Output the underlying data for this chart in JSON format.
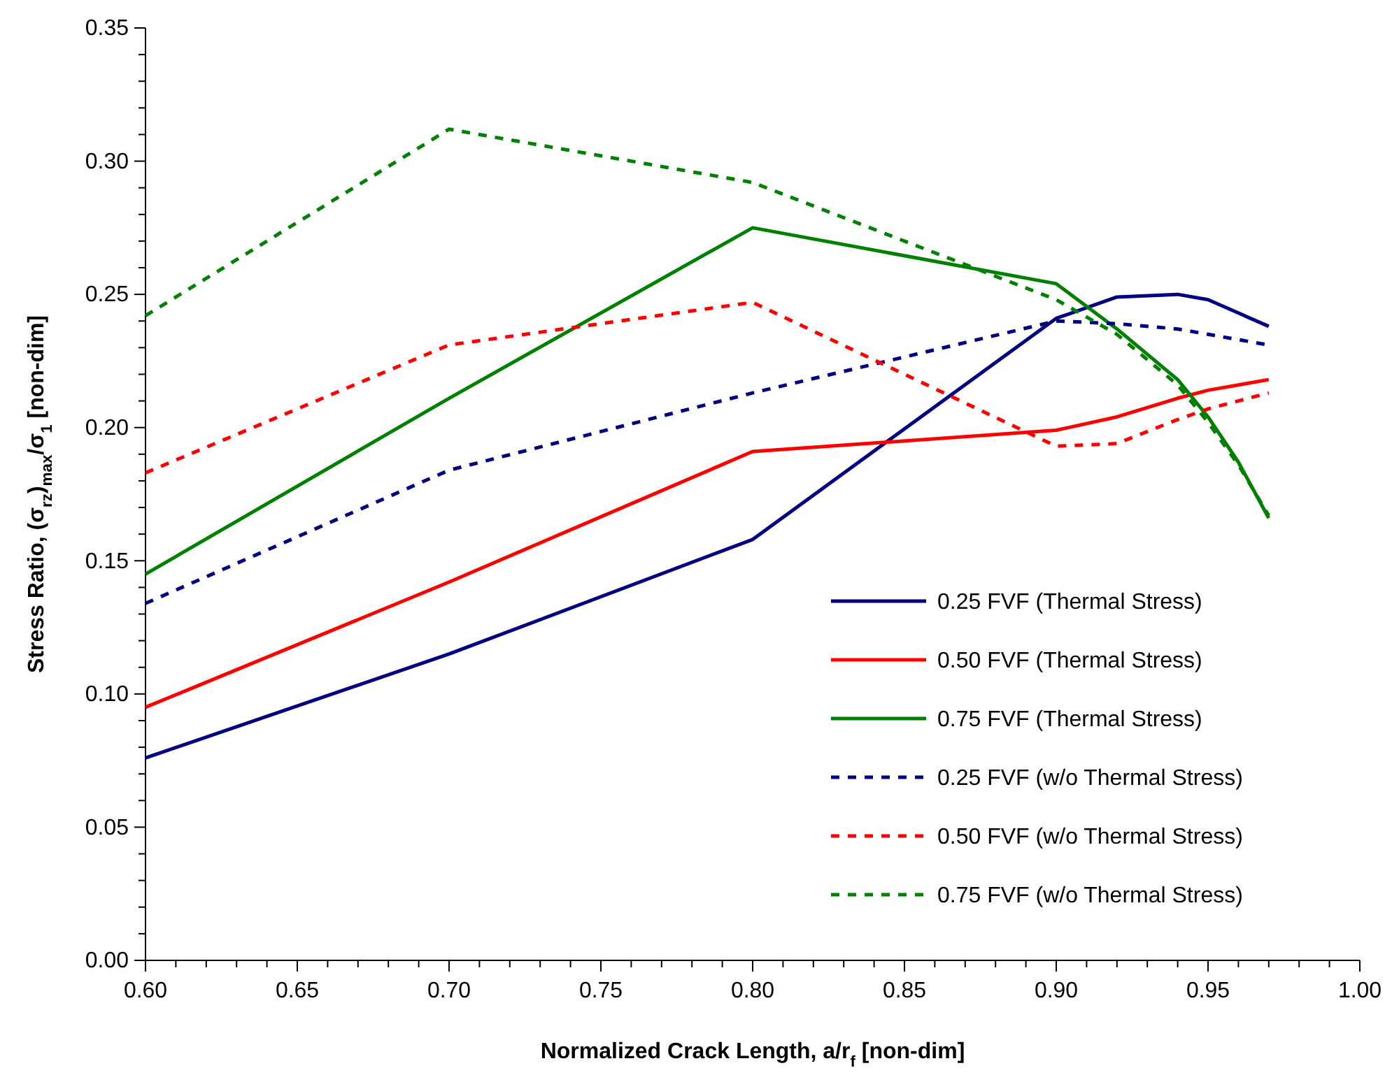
{
  "chart_data": {
    "type": "line",
    "xlabel": "Normalized Crack Length, a/r$_{f}$ [non-dim]",
    "ylabel": "Stress Ratio, (σ$_{rz}$)$_{max}$/σ$_{1}$  [non-dim]",
    "x": [
      0.6,
      0.7,
      0.8,
      0.9,
      0.92,
      0.94,
      0.95,
      0.96,
      0.97
    ],
    "series": [
      {
        "name": "0.25 FVF (Thermal Stress)",
        "color": "#000080",
        "line_style": "solid",
        "values": [
          0.076,
          0.115,
          0.158,
          0.241,
          0.249,
          0.25,
          0.248,
          0.243,
          0.238
        ]
      },
      {
        "name": "0.50 FVF (Thermal Stress)",
        "color": "#ff0000",
        "line_style": "solid",
        "values": [
          0.095,
          0.142,
          0.191,
          0.199,
          0.204,
          0.211,
          0.214,
          0.216,
          0.218
        ]
      },
      {
        "name": "0.75 FVF (Thermal Stress)",
        "color": "#008000",
        "line_style": "solid",
        "values": [
          0.145,
          0.211,
          0.275,
          0.254,
          0.237,
          0.218,
          0.204,
          0.187,
          0.166
        ]
      },
      {
        "name": "0.25 FVF (w/o Thermal Stress)",
        "color": "#000080",
        "line_style": "dashed",
        "values": [
          0.134,
          0.184,
          0.213,
          0.24,
          0.239,
          0.237,
          0.235,
          0.233,
          0.231
        ]
      },
      {
        "name": "0.50 FVF (w/o Thermal Stress)",
        "color": "#ff0000",
        "line_style": "dashed",
        "values": [
          0.183,
          0.231,
          0.247,
          0.193,
          0.194,
          0.203,
          0.207,
          0.21,
          0.213
        ]
      },
      {
        "name": "0.75 FVF (w/o Thermal Stress)",
        "color": "#008000",
        "line_style": "dashed",
        "values": [
          0.242,
          0.312,
          0.292,
          0.248,
          0.235,
          0.216,
          0.202,
          0.186,
          0.167
        ]
      }
    ],
    "xlim": [
      0.6,
      1.0
    ],
    "ylim": [
      0,
      0.35
    ],
    "xticks": [
      {
        "value": 0.6,
        "label": "0.60"
      },
      {
        "value": 0.61,
        "label": null
      },
      {
        "value": 0.62,
        "label": null
      },
      {
        "value": 0.63,
        "label": null
      },
      {
        "value": 0.64,
        "label": null
      },
      {
        "value": 0.65,
        "label": "0.65"
      },
      {
        "value": 0.66,
        "label": null
      },
      {
        "value": 0.67,
        "label": null
      },
      {
        "value": 0.68,
        "label": null
      },
      {
        "value": 0.69,
        "label": null
      },
      {
        "value": 0.7,
        "label": "0.70"
      },
      {
        "value": 0.71,
        "label": null
      },
      {
        "value": 0.72,
        "label": null
      },
      {
        "value": 0.73,
        "label": null
      },
      {
        "value": 0.74,
        "label": null
      },
      {
        "value": 0.75,
        "label": "0.75"
      },
      {
        "value": 0.76,
        "label": null
      },
      {
        "value": 0.77,
        "label": null
      },
      {
        "value": 0.78,
        "label": null
      },
      {
        "value": 0.79,
        "label": null
      },
      {
        "value": 0.8,
        "label": "0.80"
      },
      {
        "value": 0.81,
        "label": null
      },
      {
        "value": 0.82,
        "label": null
      },
      {
        "value": 0.83,
        "label": null
      },
      {
        "value": 0.84,
        "label": null
      },
      {
        "value": 0.85,
        "label": "0.85"
      },
      {
        "value": 0.86,
        "label": null
      },
      {
        "value": 0.87,
        "label": null
      },
      {
        "value": 0.88,
        "label": null
      },
      {
        "value": 0.89,
        "label": null
      },
      {
        "value": 0.9,
        "label": "0.90"
      },
      {
        "value": 0.91,
        "label": null
      },
      {
        "value": 0.92,
        "label": null
      },
      {
        "value": 0.93,
        "label": null
      },
      {
        "value": 0.94,
        "label": null
      },
      {
        "value": 0.95,
        "label": "0.95"
      },
      {
        "value": 0.96,
        "label": null
      },
      {
        "value": 0.97,
        "label": null
      },
      {
        "value": 0.98,
        "label": null
      },
      {
        "value": 0.99,
        "label": null
      },
      {
        "value": 1.0,
        "label": "1.00"
      }
    ],
    "yticks": [
      {
        "value": 0,
        "label": "0.00"
      },
      {
        "value": 0.01,
        "label": null
      },
      {
        "value": 0.02,
        "label": null
      },
      {
        "value": 0.03,
        "label": null
      },
      {
        "value": 0.04,
        "label": null
      },
      {
        "value": 0.05,
        "label": "0.05"
      },
      {
        "value": 0.06,
        "label": null
      },
      {
        "value": 0.07,
        "label": null
      },
      {
        "value": 0.08,
        "label": null
      },
      {
        "value": 0.09,
        "label": null
      },
      {
        "value": 0.1,
        "label": "0.10"
      },
      {
        "value": 0.11,
        "label": null
      },
      {
        "value": 0.12,
        "label": null
      },
      {
        "value": 0.13,
        "label": null
      },
      {
        "value": 0.14,
        "label": null
      },
      {
        "value": 0.15,
        "label": "0.15"
      },
      {
        "value": 0.16,
        "label": null
      },
      {
        "value": 0.17,
        "label": null
      },
      {
        "value": 0.18,
        "label": null
      },
      {
        "value": 0.19,
        "label": null
      },
      {
        "value": 0.2,
        "label": "0.20"
      },
      {
        "value": 0.21,
        "label": null
      },
      {
        "value": 0.22,
        "label": null
      },
      {
        "value": 0.23,
        "label": null
      },
      {
        "value": 0.24,
        "label": null
      },
      {
        "value": 0.25,
        "label": "0.25"
      },
      {
        "value": 0.26,
        "label": null
      },
      {
        "value": 0.27,
        "label": null
      },
      {
        "value": 0.28,
        "label": null
      },
      {
        "value": 0.29,
        "label": null
      },
      {
        "value": 0.3,
        "label": "0.30"
      },
      {
        "value": 0.31,
        "label": null
      },
      {
        "value": 0.32,
        "label": null
      },
      {
        "value": 0.33,
        "label": null
      },
      {
        "value": 0.34,
        "label": null
      },
      {
        "value": 0.35,
        "label": "0.35"
      }
    ],
    "grid": false,
    "legend": "bottom right",
    "marker": "none"
  }
}
